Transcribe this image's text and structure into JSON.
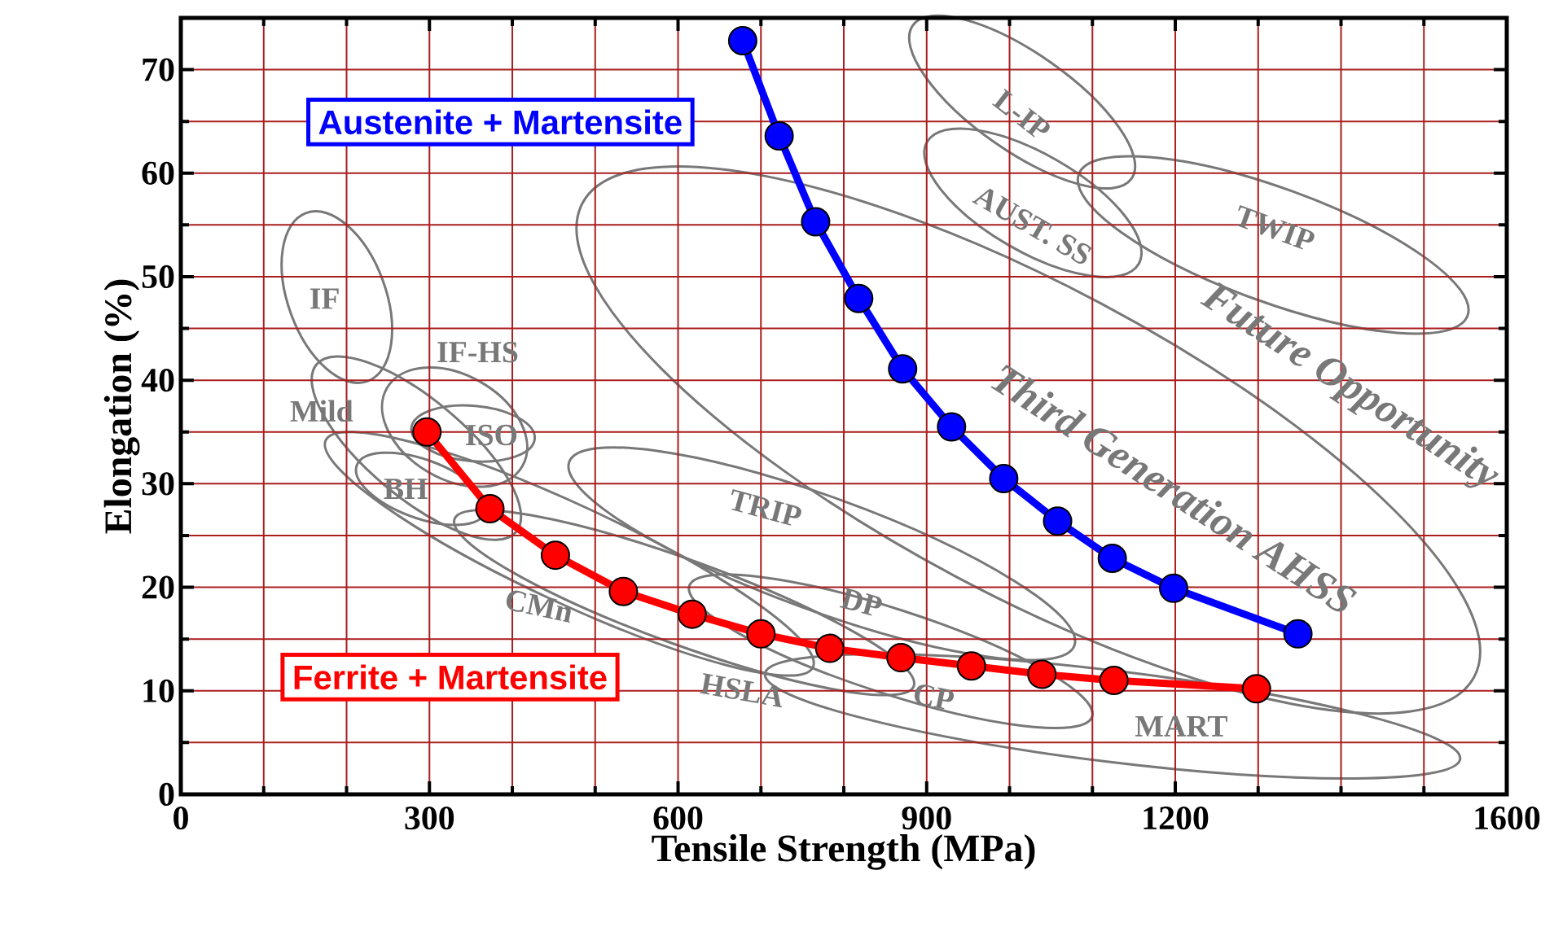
{
  "chart_data": {
    "type": "line",
    "xlabel": "Tensile Strength (MPa)",
    "ylabel": "Elongation (%)",
    "xlim": [
      0,
      1600
    ],
    "ylim": [
      0,
      75
    ],
    "xticks": [
      0,
      300,
      600,
      900,
      1200,
      1600
    ],
    "yticks": [
      0,
      10,
      20,
      30,
      40,
      50,
      60,
      70
    ],
    "grid": true,
    "legend": false,
    "marker": "circle",
    "line_style": "solid",
    "series": [
      {
        "name": "Austenite + Martensite",
        "color": "#0000ff",
        "x": [
          678,
          722,
          766,
          818,
          871,
          930,
          993,
          1058,
          1124,
          1198,
          1348
        ],
        "values": [
          72.8,
          63.6,
          55.3,
          47.9,
          41.1,
          35.5,
          30.5,
          26.4,
          22.8,
          19.9,
          15.5
        ]
      },
      {
        "name": "Ferrite + Martensite",
        "color": "#ff0000",
        "x": [
          297,
          373,
          452,
          534,
          617,
          700,
          783,
          869,
          954,
          1039,
          1126,
          1298
        ],
        "values": [
          35.0,
          27.6,
          23.1,
          19.6,
          17.4,
          15.5,
          14.1,
          13.2,
          12.4,
          11.6,
          11.0,
          10.2
        ]
      }
    ],
    "annotations": [
      "IF",
      "IF-HS",
      "Mild",
      "ISO",
      "BH",
      "CMn",
      "HSLA",
      "TRIP",
      "DP",
      "CP",
      "MART",
      "L-IP",
      "AUST. SS",
      "TWIP",
      "Future Opportunity",
      "Third Generation AHSS"
    ]
  }
}
